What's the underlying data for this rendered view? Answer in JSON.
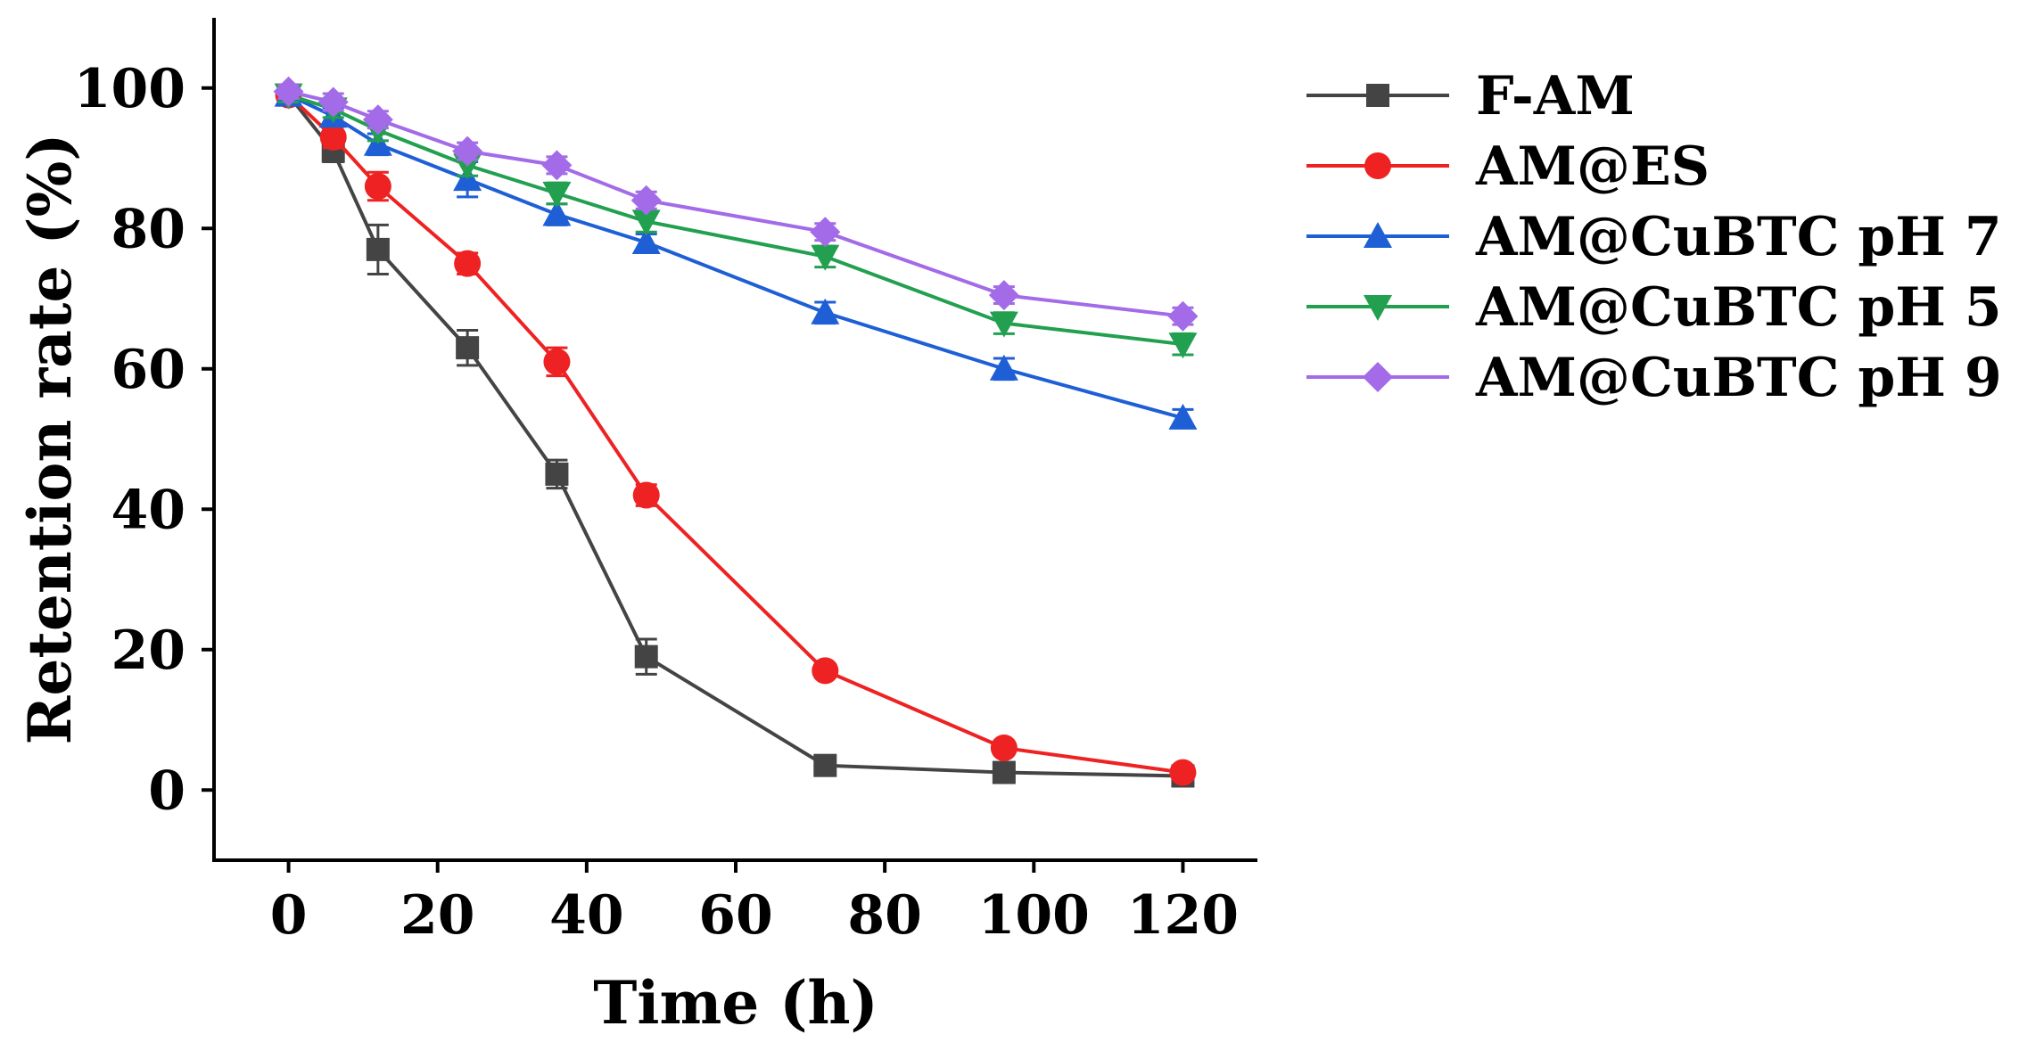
{
  "chart_data": {
    "type": "line",
    "title": "",
    "xlabel": "Time (h)",
    "ylabel": "Retention rate (%)",
    "xlim": [
      -10,
      130
    ],
    "ylim": [
      -10,
      110
    ],
    "xticks": [
      0,
      20,
      40,
      60,
      80,
      100,
      120
    ],
    "yticks": [
      0,
      20,
      40,
      60,
      80,
      100
    ],
    "x": [
      0,
      6,
      12,
      24,
      36,
      48,
      72,
      96,
      120
    ],
    "legend_position": "right",
    "series": [
      {
        "name": "F-AM",
        "color": "#444444",
        "marker": "square",
        "values": [
          99,
          91,
          77,
          63,
          45,
          19,
          3.5,
          2.5,
          2
        ],
        "errors": [
          1,
          1.5,
          3.5,
          2.5,
          2,
          2.5,
          1,
          1,
          1
        ]
      },
      {
        "name": "AM@ES",
        "color": "#ee2222",
        "marker": "circle",
        "values": [
          99,
          93,
          86,
          75,
          61,
          42,
          17,
          6,
          2.5
        ],
        "errors": [
          1,
          1.5,
          2,
          1.5,
          2,
          1.5,
          1,
          1,
          1
        ]
      },
      {
        "name": "AM@CuBTC pH 7",
        "color": "#1f5fd6",
        "marker": "triangle-up",
        "values": [
          99,
          96,
          92,
          87,
          82,
          78,
          68,
          60,
          53
        ],
        "errors": [
          1,
          1.2,
          1.5,
          2.5,
          1.5,
          1.2,
          1.5,
          1.5,
          1.2
        ]
      },
      {
        "name": "AM@CuBTC pH 5",
        "color": "#22a050",
        "marker": "triangle-down",
        "values": [
          99,
          97,
          94,
          89,
          85,
          81,
          76,
          66.5,
          63.5
        ],
        "errors": [
          1,
          1.2,
          1.5,
          1.5,
          1.5,
          1.5,
          1.5,
          1.5,
          1.5
        ]
      },
      {
        "name": "AM@CuBTC pH 9",
        "color": "#a36be8",
        "marker": "diamond",
        "values": [
          99.5,
          98,
          95.5,
          91,
          89,
          84,
          79.5,
          70.5,
          67.5
        ],
        "errors": [
          1,
          1.2,
          1.2,
          1.2,
          1.2,
          1.2,
          1.2,
          1.2,
          1.2
        ]
      }
    ]
  }
}
